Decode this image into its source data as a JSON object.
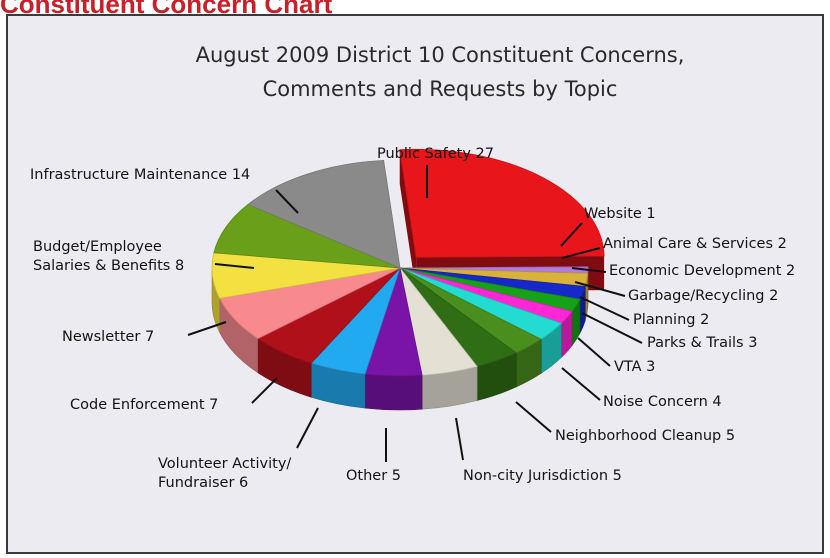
{
  "page": {
    "heading": "Constituent Concern Chart"
  },
  "chart_data": {
    "type": "pie",
    "title_lines": [
      "August 2009 District 10 Constituent Concerns,",
      "Comments and Requests by Topic"
    ],
    "slices": [
      {
        "label": "Public Safety 27",
        "category": "Public Safety",
        "value": 27,
        "color": "#e8161b"
      },
      {
        "label": "Website   1",
        "category": "Website",
        "value": 1,
        "color": "#b07ce0"
      },
      {
        "label": "Animal Care & Services 2",
        "category": "Animal Care & Services",
        "value": 2,
        "color": "#d8b23a"
      },
      {
        "label": "Economic Development 2",
        "category": "Economic Development",
        "value": 2,
        "color": "#1628c8"
      },
      {
        "label": "Garbage/Recycling 2",
        "category": "Garbage/Recycling",
        "value": 2,
        "color": "#16a216"
      },
      {
        "label": "Planning  2",
        "category": "Planning",
        "value": 2,
        "color": "#ff26d6"
      },
      {
        "label": "Parks & Trails 3",
        "category": "Parks & Trails",
        "value": 3,
        "color": "#22dcd2"
      },
      {
        "label": "VTA 3",
        "category": "VTA",
        "value": 3,
        "color": "#4a8e1e"
      },
      {
        "label": "Noise Concern 4",
        "category": "Noise Concern",
        "value": 4,
        "color": "#2f6e14"
      },
      {
        "label": "Neighborhood Cleanup 5",
        "category": "Neighborhood Cleanup",
        "value": 5,
        "color": "#e4e1d4"
      },
      {
        "label": "Non-city Jurisdiction 5",
        "category": "Non-city Jurisdiction",
        "value": 5,
        "color": "#7a14a8"
      },
      {
        "label": "Other 5",
        "category": "Other",
        "value": 5,
        "color": "#22aaf0"
      },
      {
        "label": "Volunteer Activity/|Fundraiser 6",
        "category": "Volunteer Activity/Fundraiser",
        "value": 6,
        "color": "#b0101a"
      },
      {
        "label": "Code Enforcement 7",
        "category": "Code Enforcement",
        "value": 7,
        "color": "#f7898f"
      },
      {
        "label": "Newsletter 7",
        "category": "Newsletter",
        "value": 7,
        "color": "#f2e140"
      },
      {
        "label": "Budget/Employee|Salaries & Benefits 8",
        "category": "Budget/Employee Salaries & Benefits",
        "value": 8,
        "color": "#6aa019"
      },
      {
        "label": "Infrastructure Maintenance 14",
        "category": "Infrastructure Maintenance",
        "value": 14,
        "color": "#8a8a8a"
      }
    ]
  }
}
